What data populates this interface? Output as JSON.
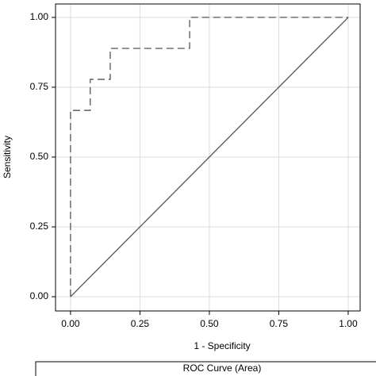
{
  "chart_data": {
    "type": "line",
    "xlabel": "1 - Specificity",
    "ylabel": "Sensitivity",
    "legend_title": "ROC Curve (Area)",
    "xlim": [
      -0.054,
      1.043
    ],
    "ylim": [
      -0.051,
      1.048
    ],
    "xticks": [
      {
        "value": 0,
        "label": "0.00"
      },
      0.25,
      {
        "value": 0.5,
        "label": "0.50"
      },
      0.75,
      {
        "value": 1,
        "label": "1.00"
      }
    ],
    "yticks": [
      {
        "value": 0,
        "label": "0.00"
      },
      0.25,
      {
        "value": 0.5,
        "label": "0.50"
      },
      0.75,
      {
        "value": 1,
        "label": "1.00"
      }
    ],
    "grid": true,
    "series": [
      {
        "x": [
          0,
          0,
          0.071,
          0.071,
          0.143,
          0.143,
          0.429,
          0.429,
          1
        ],
        "values": [
          0,
          0.667,
          0.667,
          0.778,
          0.778,
          0.889,
          0.889,
          1,
          1
        ],
        "color": "#555555",
        "dashed": true
      },
      {
        "x": [
          0,
          1
        ],
        "values": [
          0,
          1
        ],
        "color": "#555555",
        "dashed": false
      }
    ]
  }
}
